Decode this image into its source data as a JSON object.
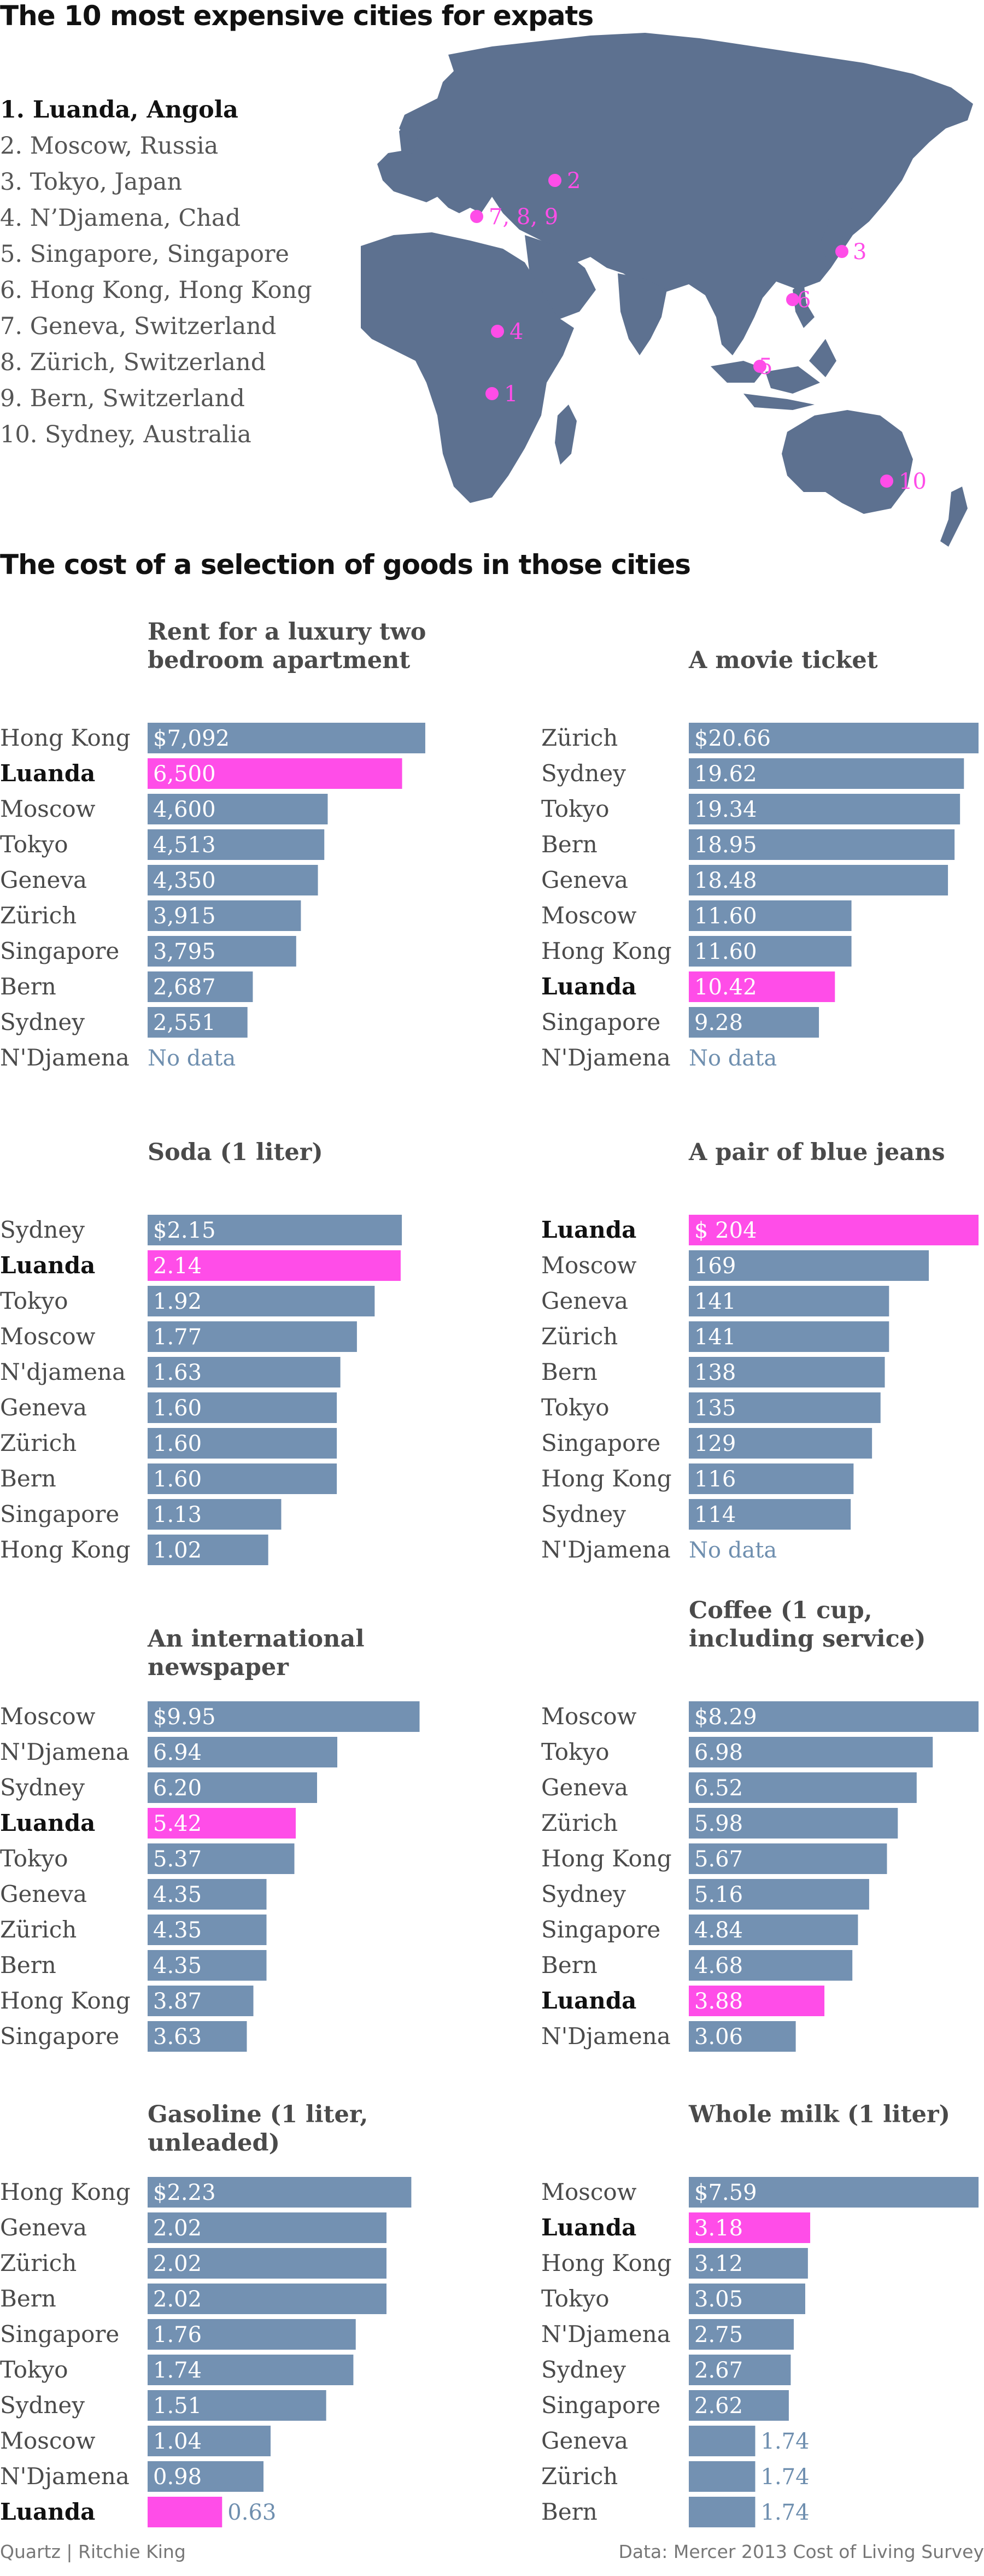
{
  "headline": "The 10 most expensive cities for expats",
  "ranking": [
    "1. Luanda, Angola",
    "2. Moscow, Russia",
    "3. Tokyo, Japan",
    "4. N’Djamena, Chad",
    "5. Singapore, Singapore",
    "6. Hong Kong, Hong Kong",
    "7. Geneva, Switzerland",
    "8. Zürich, Switzerland",
    "9. Bern, Switzerland",
    "10. Sydney, Australia"
  ],
  "map": {
    "markers": [
      "1",
      "2",
      "3",
      "4",
      "5",
      "6",
      "7, 8, 9",
      "10"
    ]
  },
  "subheading": "The cost of a selection of goods in those cities",
  "colors": {
    "bar": "#7391b2",
    "highlight": "#ff4de8",
    "nodata": "#6f8faf",
    "map": "#5d7190",
    "marker": "#ff4de8"
  },
  "no_data_label": "No data",
  "chart_data": [
    {
      "type": "bar",
      "title": "Rent for a luxury two\nbedroom apartment",
      "categories": [
        "Hong Kong",
        "Luanda",
        "Moscow",
        "Tokyo",
        "Geneva",
        "Zürich",
        "Singapore",
        "Bern",
        "Sydney",
        "N'Djamena"
      ],
      "values": [
        7092,
        6500,
        4600,
        4513,
        4350,
        3915,
        3795,
        2687,
        2551,
        null
      ],
      "labels": [
        "$7,092",
        "6,500",
        "4,600",
        "4,513",
        "4,350",
        "3,915",
        "3,795",
        "2,687",
        "2,551",
        "No data"
      ],
      "highlight": "Luanda",
      "xlim": [
        0,
        7400
      ]
    },
    {
      "type": "bar",
      "title": "A movie ticket",
      "categories": [
        "Zürich",
        "Sydney",
        "Tokyo",
        "Bern",
        "Geneva",
        "Moscow",
        "Hong Kong",
        "Luanda",
        "Singapore",
        "N'Djamena"
      ],
      "values": [
        20.66,
        19.62,
        19.34,
        18.95,
        18.48,
        11.6,
        11.6,
        10.42,
        9.28,
        null
      ],
      "labels": [
        "$20.66",
        "19.62",
        "19.34",
        "18.95",
        "18.48",
        "11.60",
        "11.60",
        "10.42",
        "9.28",
        "No data"
      ],
      "highlight": "Luanda",
      "xlim": [
        0,
        20.66
      ]
    },
    {
      "type": "bar",
      "title": "Soda (1 liter)",
      "categories": [
        "Sydney",
        "Luanda",
        "Tokyo",
        "Moscow",
        "N'djamena",
        "Geneva",
        "Zürich",
        "Bern",
        "Singapore",
        "Hong Kong"
      ],
      "values": [
        2.15,
        2.14,
        1.92,
        1.77,
        1.63,
        1.6,
        1.6,
        1.6,
        1.13,
        1.02
      ],
      "labels": [
        "$2.15",
        "2.14",
        "1.92",
        "1.77",
        "1.63",
        "1.60",
        "1.60",
        "1.60",
        "1.13",
        "1.02"
      ],
      "highlight": "Luanda",
      "xlim": [
        0,
        2.45
      ]
    },
    {
      "type": "bar",
      "title": "A pair of blue jeans",
      "categories": [
        "Luanda",
        "Moscow",
        "Geneva",
        "Zürich",
        "Bern",
        "Tokyo",
        "Singapore",
        "Hong Kong",
        "Sydney",
        "N'Djamena"
      ],
      "values": [
        204,
        169,
        141,
        141,
        138,
        135,
        129,
        116,
        114,
        null
      ],
      "labels": [
        "$ 204",
        "169",
        "141",
        "141",
        "138",
        "135",
        "129",
        "116",
        "114",
        "No data"
      ],
      "highlight": "Luanda",
      "xlim": [
        0,
        204
      ]
    },
    {
      "type": "bar",
      "title": "An international newspaper",
      "categories": [
        "Moscow",
        "N'Djamena",
        "Sydney",
        "Luanda",
        "Tokyo",
        "Geneva",
        "Zürich",
        "Bern",
        "Hong Kong",
        "Singapore"
      ],
      "values": [
        9.95,
        6.94,
        6.2,
        5.42,
        5.37,
        4.35,
        4.35,
        4.35,
        3.87,
        3.63
      ],
      "labels": [
        "$9.95",
        "6.94",
        "6.20",
        "5.42",
        "5.37",
        "4.35",
        "4.35",
        "4.35",
        "3.87",
        "3.63"
      ],
      "highlight": "Luanda",
      "xlim": [
        0,
        10.6
      ]
    },
    {
      "type": "bar",
      "title": "Coffee (1 cup,\nincluding service)",
      "categories": [
        "Moscow",
        "Tokyo",
        "Geneva",
        "Zürich",
        "Hong Kong",
        "Sydney",
        "Singapore",
        "Bern",
        "Luanda",
        "N'Djamena"
      ],
      "values": [
        8.29,
        6.98,
        6.52,
        5.98,
        5.67,
        5.16,
        4.84,
        4.68,
        3.88,
        3.06
      ],
      "labels": [
        "$8.29",
        "6.98",
        "6.52",
        "5.98",
        "5.67",
        "5.16",
        "4.84",
        "4.68",
        "3.88",
        "3.06"
      ],
      "highlight": "Luanda",
      "xlim": [
        0,
        8.29
      ]
    },
    {
      "type": "bar",
      "title": "Gasoline (1 liter, unleaded)",
      "categories": [
        "Hong Kong",
        "Geneva",
        "Zürich",
        "Bern",
        "Singapore",
        "Tokyo",
        "Sydney",
        "Moscow",
        "N'Djamena",
        "Luanda"
      ],
      "values": [
        2.23,
        2.02,
        2.02,
        2.02,
        1.76,
        1.74,
        1.51,
        1.04,
        0.98,
        0.63
      ],
      "labels": [
        "$2.23",
        "2.02",
        "2.02",
        "2.02",
        "1.76",
        "1.74",
        "1.51",
        "1.04",
        "0.98",
        "0.63"
      ],
      "highlight": "Luanda",
      "xlim": [
        0,
        2.45
      ]
    },
    {
      "type": "bar",
      "title": "Whole milk (1 liter)",
      "categories": [
        "Moscow",
        "Luanda",
        "Hong Kong",
        "Tokyo",
        "N'Djamena",
        "Sydney",
        "Singapore",
        "Geneva",
        "Zürich",
        "Bern"
      ],
      "values": [
        7.59,
        3.18,
        3.12,
        3.05,
        2.75,
        2.67,
        2.62,
        1.74,
        1.74,
        1.74
      ],
      "labels": [
        "$7.59",
        "3.18",
        "3.12",
        "3.05",
        "2.75",
        "2.67",
        "2.62",
        "1.74",
        "1.74",
        "1.74"
      ],
      "highlight": "Luanda",
      "xlim": [
        0,
        7.59
      ]
    }
  ],
  "footer": {
    "credit": "Quartz | Ritchie King",
    "source": "Data: Mercer 2013 Cost of Living Survey"
  }
}
